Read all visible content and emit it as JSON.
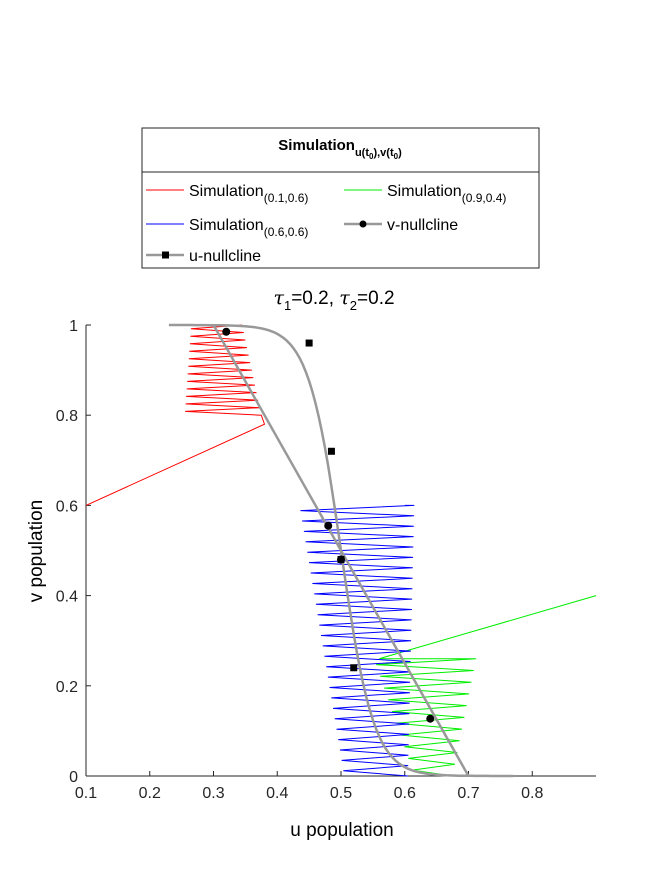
{
  "chart_data": {
    "type": "line",
    "title": {
      "tau1": "τ",
      "sub1": "1",
      "eq1": "=0.2,  ",
      "tau2": "τ",
      "sub2": "2",
      "eq2": "=0.2"
    },
    "xlabel": "u population",
    "ylabel": "v population",
    "xlim": [
      0.1,
      0.9
    ],
    "ylim": [
      0,
      1
    ],
    "xticks": [
      0.1,
      0.2,
      0.3,
      0.4,
      0.5,
      0.6,
      0.7,
      0.8
    ],
    "yticks": [
      0,
      0.2,
      0.4,
      0.6,
      0.8,
      1
    ],
    "legend": {
      "placement": "above",
      "title": "Simulation",
      "title_sub": "u(t",
      "title_sub_0": "0",
      "title_sub_mid": "),v(t",
      "title_sub_0b": "0",
      "title_sub_end": ")",
      "entries": [
        {
          "label": "Simulation",
          "sub": "(0.1,0.6)",
          "color": "#ff0000",
          "marker": "none"
        },
        {
          "label": "Simulation",
          "sub": "(0.9,0.4)",
          "color": "#00ee00",
          "marker": "none"
        },
        {
          "label": "Simulation",
          "sub": "(0.6,0.6)",
          "color": "#0000ff",
          "marker": "none"
        },
        {
          "label": "v-nullcline",
          "sub": "",
          "color": "#999999",
          "marker": "circle"
        },
        {
          "label": "u-nullcline",
          "sub": "",
          "color": "#999999",
          "marker": "square"
        }
      ]
    },
    "series": [
      {
        "name": "Simulation(0.1,0.6)",
        "color": "#ff0000",
        "start": [
          0.1,
          0.6
        ],
        "spiral": {
          "center_u": 0.33,
          "half_width": 0.06,
          "end_width": 0.04,
          "v_from": 0.8,
          "v_to": 1.0,
          "turns": 12,
          "jump_to": [
            0.38,
            0.78
          ]
        }
      },
      {
        "name": "Simulation(0.9,0.4)",
        "color": "#00ee00",
        "start": [
          0.9,
          0.4
        ],
        "spiral": {
          "center_u": 0.62,
          "half_width": 0.08,
          "end_width": 0.03,
          "v_from": 0.26,
          "v_to": 0.0,
          "turns": 10,
          "jump_to": [
            0.56,
            0.26
          ]
        }
      },
      {
        "name": "Simulation(0.6,0.6)",
        "color": "#0000ff",
        "start": [
          0.6,
          0.6
        ],
        "spiral": {
          "center_u": 0.53,
          "half_width": 0.09,
          "end_width": 0.05,
          "v_from": 0.6,
          "v_to": 0.0,
          "turns": 26
        }
      }
    ],
    "v_nullcline": {
      "u": [
        0.32,
        0.48,
        0.5,
        0.64
      ],
      "v": [
        0.985,
        0.555,
        0.48,
        0.127
      ],
      "line_from": [
        0.3,
        1.0
      ],
      "line_to": [
        0.7,
        0.0
      ]
    },
    "u_nullcline": {
      "u": [
        0.45,
        0.485,
        0.5,
        0.52
      ],
      "v": [
        0.96,
        0.72,
        0.48,
        0.24
      ],
      "center": 0.5,
      "scale": 0.16,
      "u_range": [
        0.23,
        0.77
      ]
    }
  }
}
